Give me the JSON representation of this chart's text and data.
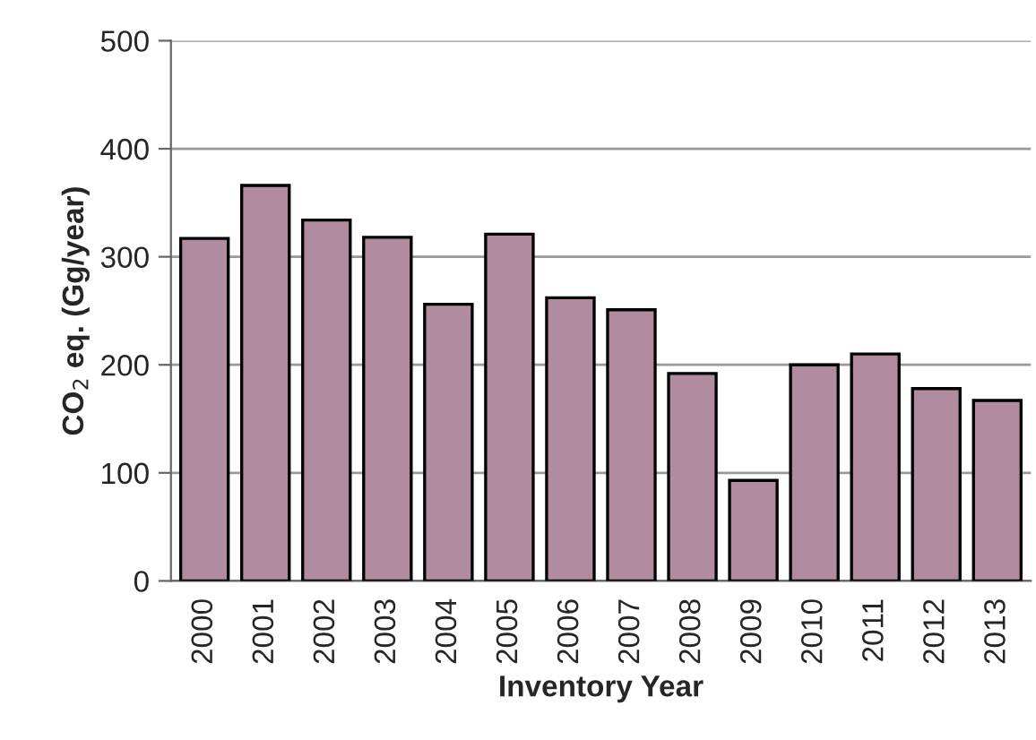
{
  "chart_data": {
    "type": "bar",
    "xlabel": "Inventory Year",
    "ylabel": "CO$_{2}$ eq. (Gg/year)",
    "categories": [
      "2000",
      "2001",
      "2002",
      "2003",
      "2004",
      "2005",
      "2006",
      "2007",
      "2008",
      "2009",
      "2010",
      "2011",
      "2012",
      "2013"
    ],
    "values": [
      317,
      366,
      334,
      318,
      256,
      321,
      262,
      251,
      192,
      93,
      200,
      210,
      178,
      167
    ],
    "color": "#b08c9e",
    "ylim": [
      0,
      500
    ],
    "yticks": [
      0,
      100,
      200,
      300,
      400,
      500
    ],
    "grid": "y"
  }
}
